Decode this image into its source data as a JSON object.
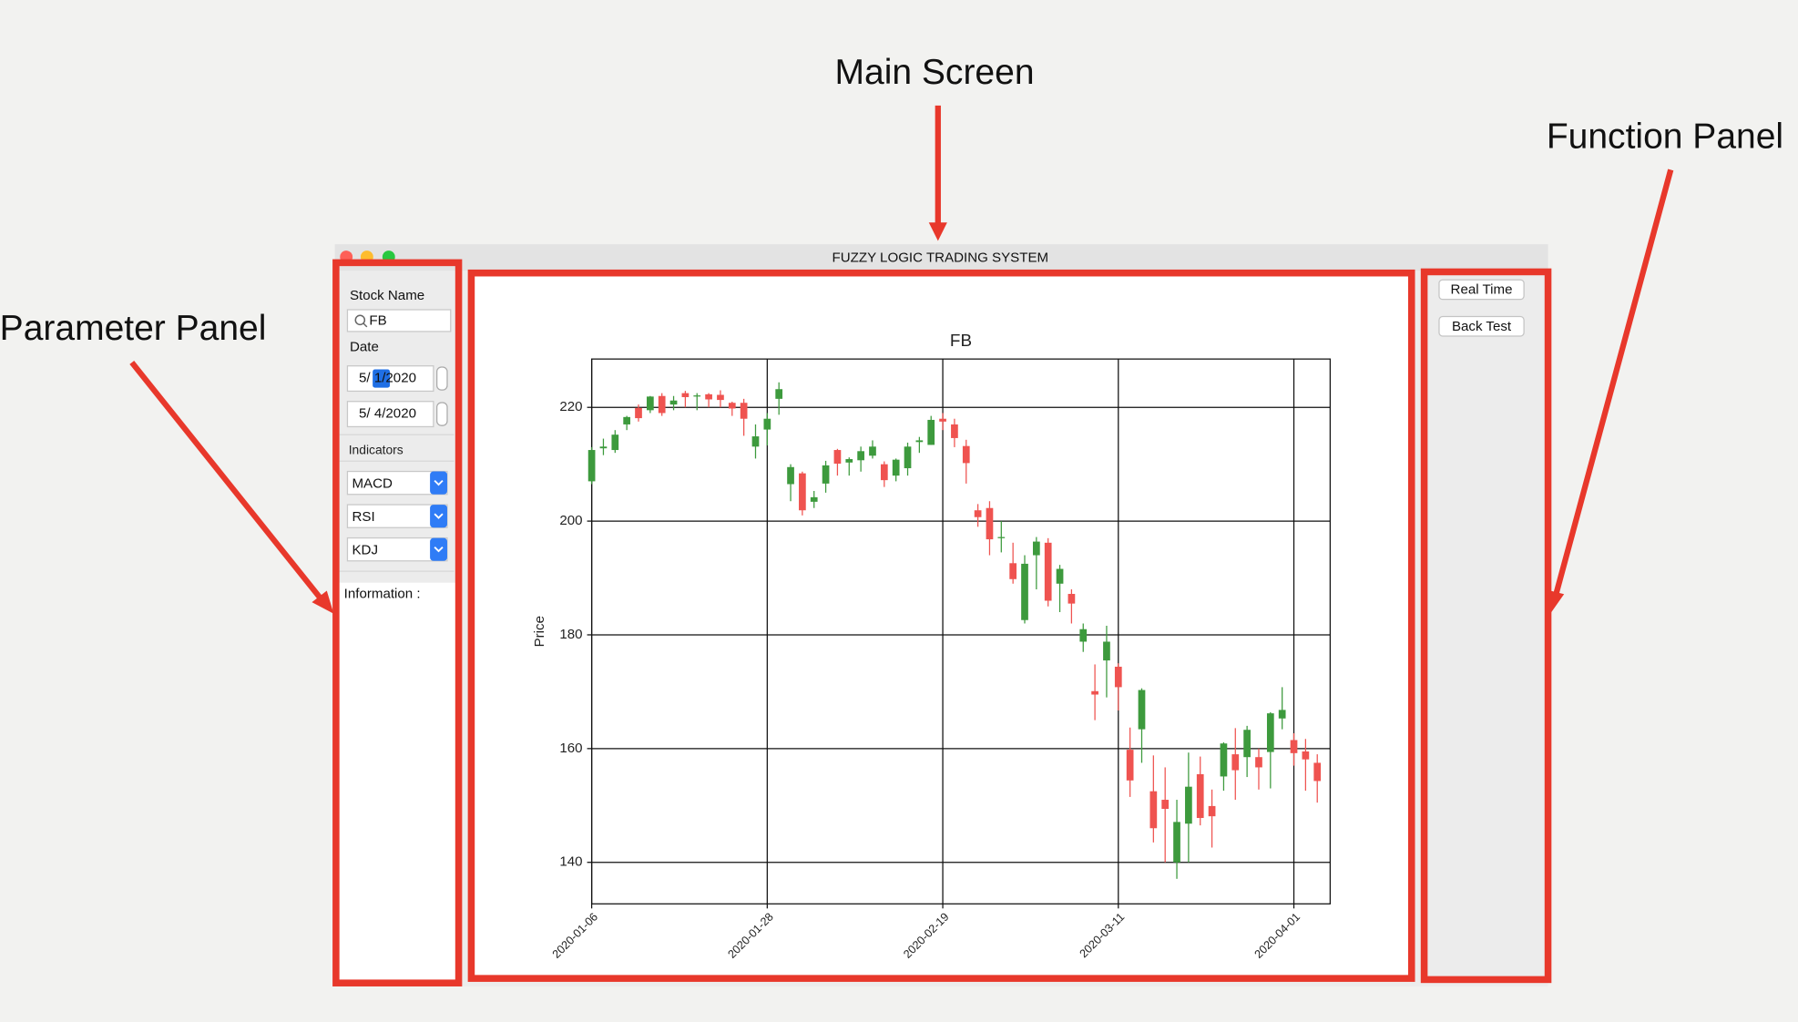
{
  "annotations": {
    "main_screen": "Main Screen",
    "function_panel": "Function Panel",
    "parameter_panel": "Parameter Panel"
  },
  "window": {
    "title": "FUZZY LOGIC TRADING SYSTEM"
  },
  "parameter_panel": {
    "stock_label": "Stock Name",
    "stock_value": "FB",
    "date_label": "Date",
    "start_date": "5/ 1/2020",
    "end_date": "5/ 4/2020",
    "indicators_label": "Indicators",
    "indicators": [
      "MACD",
      "RSI",
      "KDJ"
    ],
    "information_label": "Information :"
  },
  "function_panel": {
    "buttons": [
      "Real Time",
      "Back Test"
    ]
  },
  "chart_data": {
    "type": "candlestick",
    "title": "FB",
    "y_label": "Price",
    "x": [
      "2020-01-06",
      "2020-01-07",
      "2020-01-08",
      "2020-01-09",
      "2020-01-10",
      "2020-01-13",
      "2020-01-14",
      "2020-01-15",
      "2020-01-16",
      "2020-01-17",
      "2020-01-21",
      "2020-01-22",
      "2020-01-23",
      "2020-01-24",
      "2020-01-27",
      "2020-01-28",
      "2020-01-29",
      "2020-01-30",
      "2020-01-31",
      "2020-02-03",
      "2020-02-04",
      "2020-02-05",
      "2020-02-06",
      "2020-02-07",
      "2020-02-10",
      "2020-02-11",
      "2020-02-12",
      "2020-02-13",
      "2020-02-14",
      "2020-02-18",
      "2020-02-19",
      "2020-02-20",
      "2020-02-21",
      "2020-02-24",
      "2020-02-25",
      "2020-02-26",
      "2020-02-27",
      "2020-02-28",
      "2020-03-02",
      "2020-03-03",
      "2020-03-04",
      "2020-03-05",
      "2020-03-06",
      "2020-03-09",
      "2020-03-10",
      "2020-03-11",
      "2020-03-12",
      "2020-03-13",
      "2020-03-16",
      "2020-03-17",
      "2020-03-18",
      "2020-03-19",
      "2020-03-20",
      "2020-03-23",
      "2020-03-24",
      "2020-03-25",
      "2020-03-26",
      "2020-03-27",
      "2020-03-30",
      "2020-03-31",
      "2020-04-01",
      "2020-04-02",
      "2020-04-03"
    ],
    "open": [
      207,
      212.8,
      212.5,
      217,
      219.9,
      219.5,
      222,
      220.5,
      222.5,
      222,
      222.3,
      222.2,
      220.8,
      220.8,
      213.1,
      216.1,
      221.5,
      206.5,
      208.4,
      203.4,
      206.6,
      212.5,
      210.3,
      210.7,
      211.5,
      210,
      208,
      209.3,
      213.9,
      213.4,
      218,
      217,
      213.2,
      201.9,
      202.3,
      197,
      192.6,
      182.6,
      194,
      196.2,
      189,
      187.2,
      178.8,
      170.1,
      175.5,
      174.4,
      159.8,
      163.4,
      152.5,
      151,
      140,
      146.8,
      155.5,
      149.9,
      155.1,
      159,
      158.5,
      158.5,
      159.4,
      165.3,
      161.5,
      159.5,
      157.5
    ],
    "high": [
      213,
      214.5,
      216,
      218.5,
      220.5,
      222,
      222.5,
      222,
      222.9,
      222.5,
      222.5,
      223,
      221,
      221.5,
      217,
      219,
      224.4,
      210,
      208.7,
      205.3,
      210.6,
      212.7,
      211.2,
      213.1,
      214.2,
      210.5,
      211,
      213.8,
      214.8,
      218.5,
      219,
      218,
      214.3,
      203,
      203.5,
      200,
      196.2,
      194,
      197.2,
      197,
      192.3,
      188,
      182,
      174.8,
      181.6,
      175,
      163.7,
      170.6,
      158.8,
      156.7,
      151,
      159.3,
      158.6,
      152.8,
      161.1,
      163.6,
      164,
      160,
      166.4,
      170.8,
      162.7,
      161.7,
      159
    ],
    "low": [
      206.5,
      211.6,
      212,
      216,
      217.5,
      219,
      218.5,
      219.5,
      220,
      219.5,
      220,
      220,
      218.5,
      215,
      211,
      213.3,
      218.7,
      203.5,
      201,
      202.3,
      205,
      208,
      208,
      208.7,
      211,
      206,
      207,
      208,
      212,
      213.4,
      216,
      213,
      206.6,
      199,
      194,
      194.5,
      189,
      182,
      188,
      185,
      184,
      182,
      177,
      165,
      169,
      166.7,
      151.5,
      157.5,
      143.5,
      140,
      137.1,
      140,
      146.5,
      142.6,
      152.6,
      151,
      155,
      152.8,
      153,
      163.4,
      157,
      152.6,
      150.5
    ],
    "close": [
      212.5,
      213.1,
      215.2,
      218.3,
      218.1,
      221.9,
      219,
      221.2,
      221.8,
      222.1,
      221.4,
      221.3,
      219.8,
      218,
      214.9,
      218,
      223.2,
      209.5,
      201.9,
      204.2,
      209.8,
      210.1,
      210.9,
      212.3,
      213.1,
      207.2,
      210.8,
      213.1,
      214.2,
      217.8,
      217.5,
      214.6,
      210.2,
      200.7,
      196.8,
      197.2,
      189.8,
      192.5,
      196.4,
      186,
      191.6,
      185.5,
      181,
      169.5,
      178.8,
      170.8,
      154.4,
      170.3,
      146,
      149.4,
      147.1,
      153.3,
      147.8,
      148.1,
      160.9,
      156.2,
      163.3,
      156.7,
      166.2,
      166.8,
      159.2,
      158.1,
      154.3
    ],
    "up_color": "#3d9a3d",
    "down_color": "#ef5350",
    "ylim": [
      132.7,
      228.5
    ],
    "yticks": [
      140,
      160,
      180,
      200,
      220
    ],
    "xticks": [
      "2020-01-06",
      "2020-01-28",
      "2020-02-19",
      "2020-03-11",
      "2020-04-01"
    ],
    "grid": true
  }
}
